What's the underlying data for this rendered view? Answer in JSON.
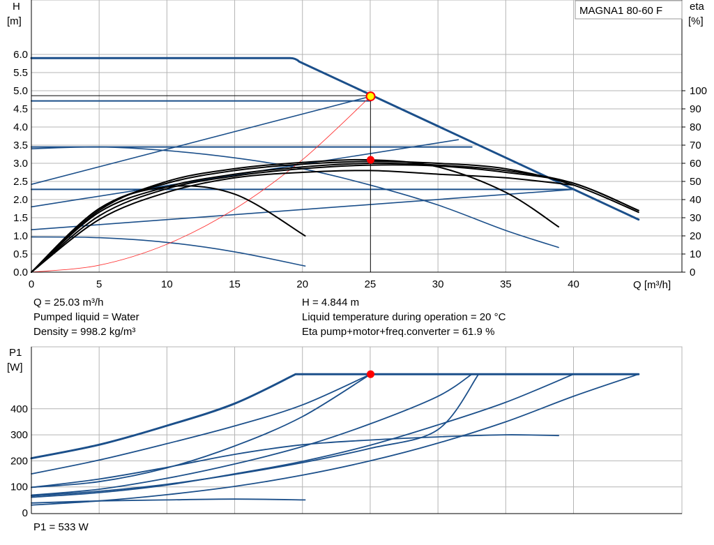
{
  "chart_data": [
    {
      "type": "line",
      "title": "MAGNA1 80-60 F",
      "ylabel": "H",
      "yunit": "[m]",
      "y2label": "eta",
      "y2unit": "[%]",
      "xlabel": "Q [m³/h]",
      "xlim": [
        0,
        48
      ],
      "ylim": [
        0,
        6.0
      ],
      "y2lim": [
        0,
        100
      ],
      "grid": true,
      "x_ticks": [
        "0",
        "5",
        "10",
        "15",
        "20",
        "25",
        "30",
        "35",
        "40"
      ],
      "y_ticks": [
        "0.0",
        "0.5",
        "1.0",
        "1.5",
        "2.0",
        "2.5",
        "3.0",
        "3.5",
        "4.0",
        "4.5",
        "5.0",
        "5.5",
        "6.0"
      ],
      "y2_ticks": [
        "0",
        "10",
        "20",
        "30",
        "40",
        "50",
        "60",
        "70",
        "80",
        "90",
        "100"
      ],
      "head_curves": [
        {
          "style": "max",
          "x": [
            0,
            19.5,
            44.8
          ],
          "y": [
            5.9,
            5.9,
            1.45
          ]
        },
        {
          "style": "const_pressure",
          "x": [
            0,
            25.03
          ],
          "y": [
            4.72,
            4.72
          ]
        },
        {
          "style": "const_pressure",
          "x": [
            0,
            32.5
          ],
          "y": [
            3.45,
            3.45
          ]
        },
        {
          "style": "const_pressure",
          "x": [
            0,
            40.0
          ],
          "y": [
            2.28,
            2.28
          ]
        },
        {
          "style": "prop_pressure",
          "x": [
            0,
            25.03
          ],
          "y": [
            2.42,
            4.844
          ]
        },
        {
          "style": "prop_pressure",
          "x": [
            0,
            31.5
          ],
          "y": [
            1.8,
            3.65
          ]
        },
        {
          "style": "prop_pressure",
          "x": [
            0,
            40.0
          ],
          "y": [
            1.17,
            2.28
          ]
        },
        {
          "style": "const_curve",
          "x": [
            0,
            5,
            10,
            15,
            20,
            25,
            30,
            35,
            38.9
          ],
          "y": [
            3.4,
            3.45,
            3.35,
            3.15,
            2.85,
            2.4,
            1.85,
            1.15,
            0.68
          ]
        },
        {
          "style": "const_curve",
          "x": [
            0,
            5,
            10,
            15,
            20.2
          ],
          "y": [
            0.97,
            0.95,
            0.82,
            0.56,
            0.17
          ]
        },
        {
          "style": "system",
          "x": [
            0,
            5,
            10,
            15,
            20,
            25.03
          ],
          "y": [
            0,
            0.19,
            0.77,
            1.74,
            3.1,
            4.844
          ]
        }
      ],
      "efficiency_curves": [
        {
          "x": [
            0,
            5,
            10,
            15,
            20,
            25,
            30,
            35,
            40,
            44.8
          ],
          "y": [
            0,
            33,
            47,
            54,
            58,
            60,
            59,
            56,
            49,
            34
          ]
        },
        {
          "x": [
            0,
            5,
            10,
            15,
            20,
            25,
            30,
            35,
            40,
            44.8
          ],
          "y": [
            0,
            35,
            49,
            56,
            59.5,
            61,
            60,
            57,
            48,
            33
          ]
        },
        {
          "x": [
            0,
            5,
            10,
            15,
            20,
            25,
            30,
            35,
            40,
            44.8
          ],
          "y": [
            0,
            31,
            46,
            53,
            57,
            59,
            58.5,
            55,
            49,
            34
          ]
        },
        {
          "x": [
            0,
            5,
            10,
            15,
            20,
            25,
            30,
            35,
            40
          ],
          "y": [
            0,
            29,
            44,
            52,
            55,
            56,
            54,
            52,
            48
          ]
        },
        {
          "x": [
            0,
            5,
            10,
            15,
            20,
            25,
            30,
            35,
            38.9
          ],
          "y": [
            0,
            34,
            50,
            57,
            60.5,
            61.9,
            58,
            44,
            25
          ]
        },
        {
          "x": [
            0,
            5,
            10,
            15,
            20.2
          ],
          "y": [
            0,
            35,
            47,
            43,
            20
          ]
        }
      ],
      "duty_point": {
        "x": 25.03,
        "y": 4.844
      },
      "efficiency_point": {
        "x": 25.03,
        "y": 61.9
      }
    },
    {
      "type": "line",
      "ylabel": "P1",
      "yunit": "[W]",
      "xlim": [
        0,
        48
      ],
      "ylim": [
        0,
        540
      ],
      "grid": true,
      "y_ticks": [
        "0",
        "100",
        "200",
        "300",
        "400"
      ],
      "power_curves": [
        {
          "x": [
            0,
            5,
            10,
            15,
            19.5,
            44.8
          ],
          "y": [
            210,
            262,
            335,
            420,
            533,
            533
          ]
        },
        {
          "x": [
            0,
            5,
            10,
            15,
            20,
            25.03
          ],
          "y": [
            150,
            203,
            266,
            334,
            415,
            533
          ]
        },
        {
          "x": [
            0,
            5,
            10,
            15,
            20,
            25.03
          ],
          "y": [
            98,
            120,
            173,
            257,
            370,
            533
          ]
        },
        {
          "x": [
            0,
            5,
            10,
            15,
            20,
            25,
            30,
            32.5
          ],
          "y": [
            68,
            91,
            133,
            188,
            255,
            342,
            448,
            533
          ]
        },
        {
          "x": [
            0,
            5,
            10,
            15,
            20,
            25,
            30,
            35,
            40
          ],
          "y": [
            60,
            78,
            107,
            150,
            198,
            260,
            338,
            425,
            533
          ]
        },
        {
          "x": [
            0,
            5,
            10,
            15,
            20,
            25,
            30,
            33
          ],
          "y": [
            65,
            83,
            110,
            148,
            193,
            248,
            320,
            533
          ]
        },
        {
          "x": [
            0,
            5,
            10,
            15,
            20,
            25,
            30,
            35,
            40,
            44.8
          ],
          "y": [
            30,
            46,
            70,
            102,
            145,
            200,
            268,
            350,
            448,
            533
          ]
        },
        {
          "x": [
            0,
            5,
            10,
            15,
            20,
            25,
            30,
            35,
            38.9
          ],
          "y": [
            98,
            130,
            175,
            225,
            262,
            280,
            292,
            300,
            297
          ]
        },
        {
          "x": [
            0,
            5,
            10,
            15,
            20.2
          ],
          "y": [
            38,
            46,
            50,
            53,
            50
          ]
        }
      ],
      "duty_point": {
        "x": 25.03,
        "y": 533
      }
    }
  ],
  "info": {
    "q": "Q = 25.03 m³/h",
    "liquid": "Pumped liquid = Water",
    "density": "Density = 998.2 kg/m³",
    "h": "H = 4.844 m",
    "temp": "Liquid temperature during operation = 20 °C",
    "eta": "Eta pump+motor+freq.converter = 61.9 %",
    "p1": "P1 = 533 W"
  },
  "colors": {
    "curve": "#1b4f8a",
    "efficiency": "#000000",
    "system": "#ff3333",
    "grid": "#b4b4b4",
    "duty_point": "#ff0000",
    "duty_point_fill": "#ffff00"
  }
}
